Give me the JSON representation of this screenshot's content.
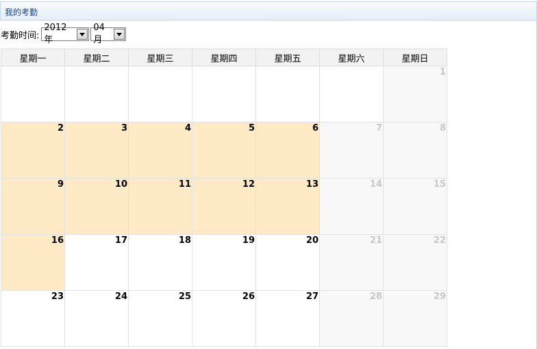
{
  "panel": {
    "title": "我的考勤"
  },
  "filter": {
    "label": "考勤时间:",
    "year": "2012年",
    "month": "04月"
  },
  "calendar": {
    "weekdays": [
      "星期一",
      "星期二",
      "星期三",
      "星期四",
      "星期五",
      "星期六",
      "星期日"
    ],
    "weeks": [
      [
        {
          "day": "",
          "type": "empty"
        },
        {
          "day": "",
          "type": "empty"
        },
        {
          "day": "",
          "type": "empty"
        },
        {
          "day": "",
          "type": "empty"
        },
        {
          "day": "",
          "type": "empty"
        },
        {
          "day": "",
          "type": "empty"
        },
        {
          "day": "1",
          "type": "weekend"
        }
      ],
      [
        {
          "day": "2",
          "type": "work"
        },
        {
          "day": "3",
          "type": "work"
        },
        {
          "day": "4",
          "type": "work"
        },
        {
          "day": "5",
          "type": "work"
        },
        {
          "day": "6",
          "type": "work"
        },
        {
          "day": "7",
          "type": "weekend"
        },
        {
          "day": "8",
          "type": "weekend"
        }
      ],
      [
        {
          "day": "9",
          "type": "work"
        },
        {
          "day": "10",
          "type": "work"
        },
        {
          "day": "11",
          "type": "work"
        },
        {
          "day": "12",
          "type": "work"
        },
        {
          "day": "13",
          "type": "work"
        },
        {
          "day": "14",
          "type": "weekend"
        },
        {
          "day": "15",
          "type": "weekend"
        }
      ],
      [
        {
          "day": "16",
          "type": "work"
        },
        {
          "day": "17",
          "type": "normal"
        },
        {
          "day": "18",
          "type": "normal"
        },
        {
          "day": "19",
          "type": "normal"
        },
        {
          "day": "20",
          "type": "normal"
        },
        {
          "day": "21",
          "type": "weekend"
        },
        {
          "day": "22",
          "type": "weekend"
        }
      ],
      [
        {
          "day": "23",
          "type": "normal"
        },
        {
          "day": "24",
          "type": "normal"
        },
        {
          "day": "25",
          "type": "normal"
        },
        {
          "day": "26",
          "type": "normal"
        },
        {
          "day": "27",
          "type": "normal"
        },
        {
          "day": "28",
          "type": "weekend"
        },
        {
          "day": "29",
          "type": "weekend"
        }
      ]
    ]
  },
  "colors": {
    "work_day": "#feeac4",
    "weekend": "#f8f8f8",
    "header_bg": "#f2f2f2",
    "panel_title": "#15428b"
  }
}
